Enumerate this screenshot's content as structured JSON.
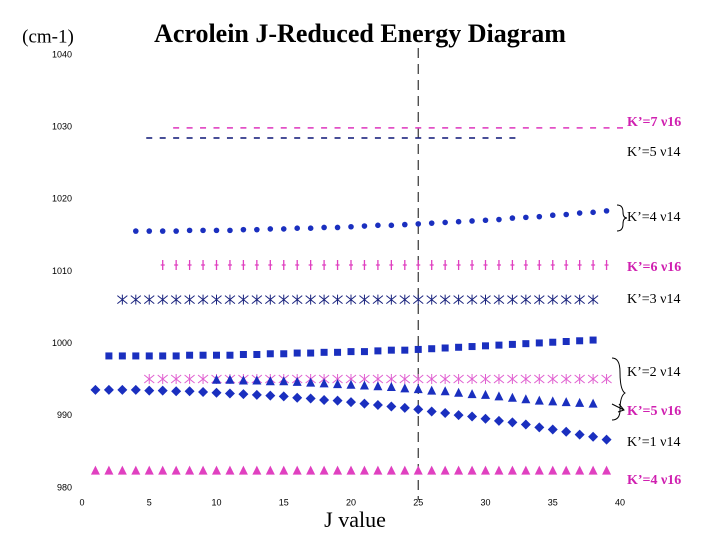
{
  "chart_data": {
    "type": "scatter",
    "title": "Acrolein J-Reduced Energy Diagram",
    "y_label": "(cm-1)",
    "x_label": "J value",
    "xlim": [
      0,
      40
    ],
    "xticks": [
      0,
      5,
      10,
      15,
      20,
      25,
      30,
      35,
      40
    ],
    "ylim": [
      980,
      1040
    ],
    "yticks": [
      980,
      990,
      1000,
      1010,
      1020,
      1030,
      1040
    ],
    "reference_x": 25,
    "series": [
      {
        "name": "K’=7 ν16",
        "color": "#e040c0",
        "marker": "dash",
        "x": [
          7,
          8,
          9,
          10,
          11,
          12,
          13,
          14,
          15,
          16,
          17,
          18,
          19,
          20,
          21,
          22,
          23,
          24,
          25,
          26,
          27,
          28,
          29,
          30,
          31,
          32,
          33,
          34,
          35,
          36,
          37,
          38,
          39,
          40
        ],
        "values": [
          1029.9,
          1029.9,
          1029.9,
          1029.9,
          1029.9,
          1029.9,
          1029.9,
          1029.9,
          1029.9,
          1029.9,
          1029.9,
          1029.9,
          1029.9,
          1029.9,
          1029.9,
          1029.9,
          1029.9,
          1029.9,
          1029.9,
          1029.9,
          1029.9,
          1029.9,
          1029.9,
          1029.9,
          1029.9,
          1029.9,
          1029.9,
          1029.9,
          1029.9,
          1029.9,
          1029.9,
          1029.9,
          1029.9,
          1029.9
        ]
      },
      {
        "name": "K’=5 ν14",
        "color": "#1a237e",
        "marker": "dash",
        "x": [
          5,
          6,
          7,
          8,
          9,
          10,
          11,
          12,
          13,
          14,
          15,
          16,
          17,
          18,
          19,
          20,
          21,
          22,
          23,
          24,
          25,
          26,
          27,
          28,
          29,
          30,
          31,
          32
        ],
        "values": [
          1028.5,
          1028.5,
          1028.5,
          1028.5,
          1028.5,
          1028.5,
          1028.5,
          1028.5,
          1028.5,
          1028.5,
          1028.5,
          1028.5,
          1028.5,
          1028.5,
          1028.5,
          1028.5,
          1028.5,
          1028.5,
          1028.5,
          1028.5,
          1028.5,
          1028.5,
          1028.5,
          1028.5,
          1028.5,
          1028.5,
          1028.5,
          1028.5
        ]
      },
      {
        "name": "K’=4 ν14",
        "color": "#1a2fbf",
        "marker": "circle",
        "x": [
          4,
          5,
          6,
          7,
          8,
          9,
          10,
          11,
          12,
          13,
          14,
          15,
          16,
          17,
          18,
          19,
          20,
          21,
          22,
          23,
          24,
          25,
          26,
          27,
          28,
          29,
          30,
          31,
          32,
          33,
          34,
          35,
          36,
          37,
          38,
          39
        ],
        "values": [
          1015.6,
          1015.6,
          1015.6,
          1015.6,
          1015.7,
          1015.7,
          1015.7,
          1015.7,
          1015.8,
          1015.8,
          1015.9,
          1015.9,
          1016.0,
          1016.0,
          1016.1,
          1016.1,
          1016.2,
          1016.3,
          1016.4,
          1016.4,
          1016.5,
          1016.6,
          1016.7,
          1016.8,
          1016.9,
          1017.0,
          1017.1,
          1017.2,
          1017.4,
          1017.5,
          1017.6,
          1017.8,
          1017.9,
          1018.1,
          1018.2,
          1018.4
        ]
      },
      {
        "name": "K’=6 ν16",
        "color": "#e040c0",
        "marker": "tick",
        "x": [
          6,
          7,
          8,
          9,
          10,
          11,
          12,
          13,
          14,
          15,
          16,
          17,
          18,
          19,
          20,
          21,
          22,
          23,
          24,
          25,
          26,
          27,
          28,
          29,
          30,
          31,
          32,
          33,
          34,
          35,
          36,
          37,
          38,
          39
        ],
        "values": [
          1010.9,
          1010.9,
          1010.9,
          1010.9,
          1010.9,
          1010.9,
          1010.9,
          1010.9,
          1010.9,
          1010.9,
          1010.9,
          1010.9,
          1010.9,
          1010.9,
          1010.9,
          1010.9,
          1010.9,
          1010.9,
          1010.9,
          1010.9,
          1010.9,
          1010.9,
          1010.9,
          1010.9,
          1010.9,
          1010.9,
          1010.9,
          1010.9,
          1010.9,
          1010.9,
          1010.9,
          1010.9,
          1010.9,
          1010.9
        ]
      },
      {
        "name": "K’=3 ν14",
        "color": "#1a237e",
        "marker": "asterisk",
        "x": [
          3,
          4,
          5,
          6,
          7,
          8,
          9,
          10,
          11,
          12,
          13,
          14,
          15,
          16,
          17,
          18,
          19,
          20,
          21,
          22,
          23,
          24,
          25,
          26,
          27,
          28,
          29,
          30,
          31,
          32,
          33,
          34,
          35,
          36,
          37,
          38
        ],
        "values": [
          1006.1,
          1006.1,
          1006.1,
          1006.1,
          1006.1,
          1006.1,
          1006.1,
          1006.1,
          1006.1,
          1006.1,
          1006.1,
          1006.1,
          1006.1,
          1006.1,
          1006.1,
          1006.1,
          1006.1,
          1006.1,
          1006.1,
          1006.1,
          1006.1,
          1006.1,
          1006.1,
          1006.1,
          1006.1,
          1006.1,
          1006.1,
          1006.1,
          1006.1,
          1006.1,
          1006.1,
          1006.1,
          1006.1,
          1006.1,
          1006.1,
          1006.1
        ]
      },
      {
        "name": "K’=2 ν14",
        "color": "#1a2fbf",
        "marker": "square",
        "x": [
          2,
          3,
          4,
          5,
          6,
          7,
          8,
          9,
          10,
          11,
          12,
          13,
          14,
          15,
          16,
          17,
          18,
          19,
          20,
          21,
          22,
          23,
          24,
          25,
          26,
          27,
          28,
          29,
          30,
          31,
          32,
          33,
          34,
          35,
          36,
          37,
          38
        ],
        "values": [
          998.3,
          998.3,
          998.3,
          998.3,
          998.3,
          998.3,
          998.4,
          998.4,
          998.4,
          998.4,
          998.5,
          998.5,
          998.6,
          998.6,
          998.7,
          998.7,
          998.8,
          998.8,
          998.9,
          998.9,
          999.0,
          999.1,
          999.1,
          999.2,
          999.3,
          999.4,
          999.5,
          999.6,
          999.7,
          999.8,
          999.9,
          1000.0,
          1000.1,
          1000.2,
          1000.3,
          1000.4,
          1000.5
        ]
      },
      {
        "name": "K’=5 ν16",
        "color": "#e060d0",
        "marker": "asterisk",
        "x": [
          5,
          6,
          7,
          8,
          9,
          10,
          11,
          12,
          13,
          14,
          15,
          16,
          17,
          18,
          19,
          20,
          21,
          22,
          23,
          24,
          25,
          26,
          27,
          28,
          29,
          30,
          31,
          32,
          33,
          34,
          35,
          36,
          37,
          38,
          39
        ],
        "values": [
          995.1,
          995.1,
          995.1,
          995.1,
          995.1,
          995.1,
          995.1,
          995.1,
          995.1,
          995.1,
          995.1,
          995.1,
          995.1,
          995.1,
          995.1,
          995.1,
          995.1,
          995.1,
          995.1,
          995.1,
          995.1,
          995.1,
          995.1,
          995.1,
          995.1,
          995.1,
          995.1,
          995.1,
          995.1,
          995.1,
          995.1,
          995.1,
          995.1,
          995.1,
          995.1
        ]
      },
      {
        "name": "K’=1 ν14",
        "color": "#1a2fbf",
        "marker": "diamond",
        "x": [
          1,
          2,
          3,
          4,
          5,
          6,
          7,
          8,
          9,
          10,
          11,
          12,
          13,
          14,
          15,
          16,
          17,
          18,
          19,
          20,
          21,
          22,
          23,
          24,
          25,
          26,
          27,
          28,
          29,
          30,
          31,
          32,
          33,
          34,
          35,
          36,
          37,
          38,
          39
        ],
        "values": [
          993.6,
          993.6,
          993.6,
          993.6,
          993.5,
          993.5,
          993.4,
          993.4,
          993.3,
          993.2,
          993.1,
          993.0,
          992.9,
          992.8,
          992.7,
          992.5,
          992.4,
          992.2,
          992.1,
          991.9,
          991.7,
          991.5,
          991.3,
          991.1,
          990.9,
          990.6,
          990.4,
          990.1,
          989.9,
          989.6,
          989.3,
          989.1,
          988.8,
          988.4,
          988.1,
          987.8,
          987.4,
          987.1,
          986.7
        ]
      },
      {
        "color": "#1a2fbf",
        "marker": "triangle",
        "x": [
          10,
          11,
          12,
          13,
          14,
          15,
          16,
          17,
          18,
          19,
          20,
          21,
          22,
          23,
          24,
          25,
          26,
          27,
          28,
          29,
          30,
          31,
          32,
          33,
          34,
          35,
          36,
          37,
          38
        ],
        "values": [
          995.0,
          995.0,
          994.9,
          994.9,
          994.8,
          994.8,
          994.7,
          994.6,
          994.5,
          994.4,
          994.3,
          994.2,
          994.1,
          994.0,
          993.8,
          993.7,
          993.5,
          993.4,
          993.2,
          993.0,
          992.9,
          992.7,
          992.5,
          992.3,
          992.1,
          992.0,
          991.9,
          991.8,
          991.7
        ]
      },
      {
        "name": "K’=4 ν16",
        "color": "#e040c0",
        "marker": "triangle",
        "x": [
          1,
          2,
          3,
          4,
          5,
          6,
          7,
          8,
          9,
          10,
          11,
          12,
          13,
          14,
          15,
          16,
          17,
          18,
          19,
          20,
          21,
          22,
          23,
          24,
          25,
          26,
          27,
          28,
          29,
          30,
          31,
          32,
          33,
          34,
          35,
          36,
          37,
          38,
          39
        ],
        "values": [
          982.4,
          982.4,
          982.4,
          982.4,
          982.4,
          982.4,
          982.4,
          982.4,
          982.4,
          982.4,
          982.4,
          982.4,
          982.4,
          982.4,
          982.4,
          982.4,
          982.4,
          982.4,
          982.4,
          982.4,
          982.4,
          982.4,
          982.4,
          982.4,
          982.4,
          982.4,
          982.4,
          982.4,
          982.4,
          982.4,
          982.4,
          982.4,
          982.4,
          982.4,
          982.4,
          982.4,
          982.4,
          982.4,
          982.4
        ]
      }
    ]
  }
}
